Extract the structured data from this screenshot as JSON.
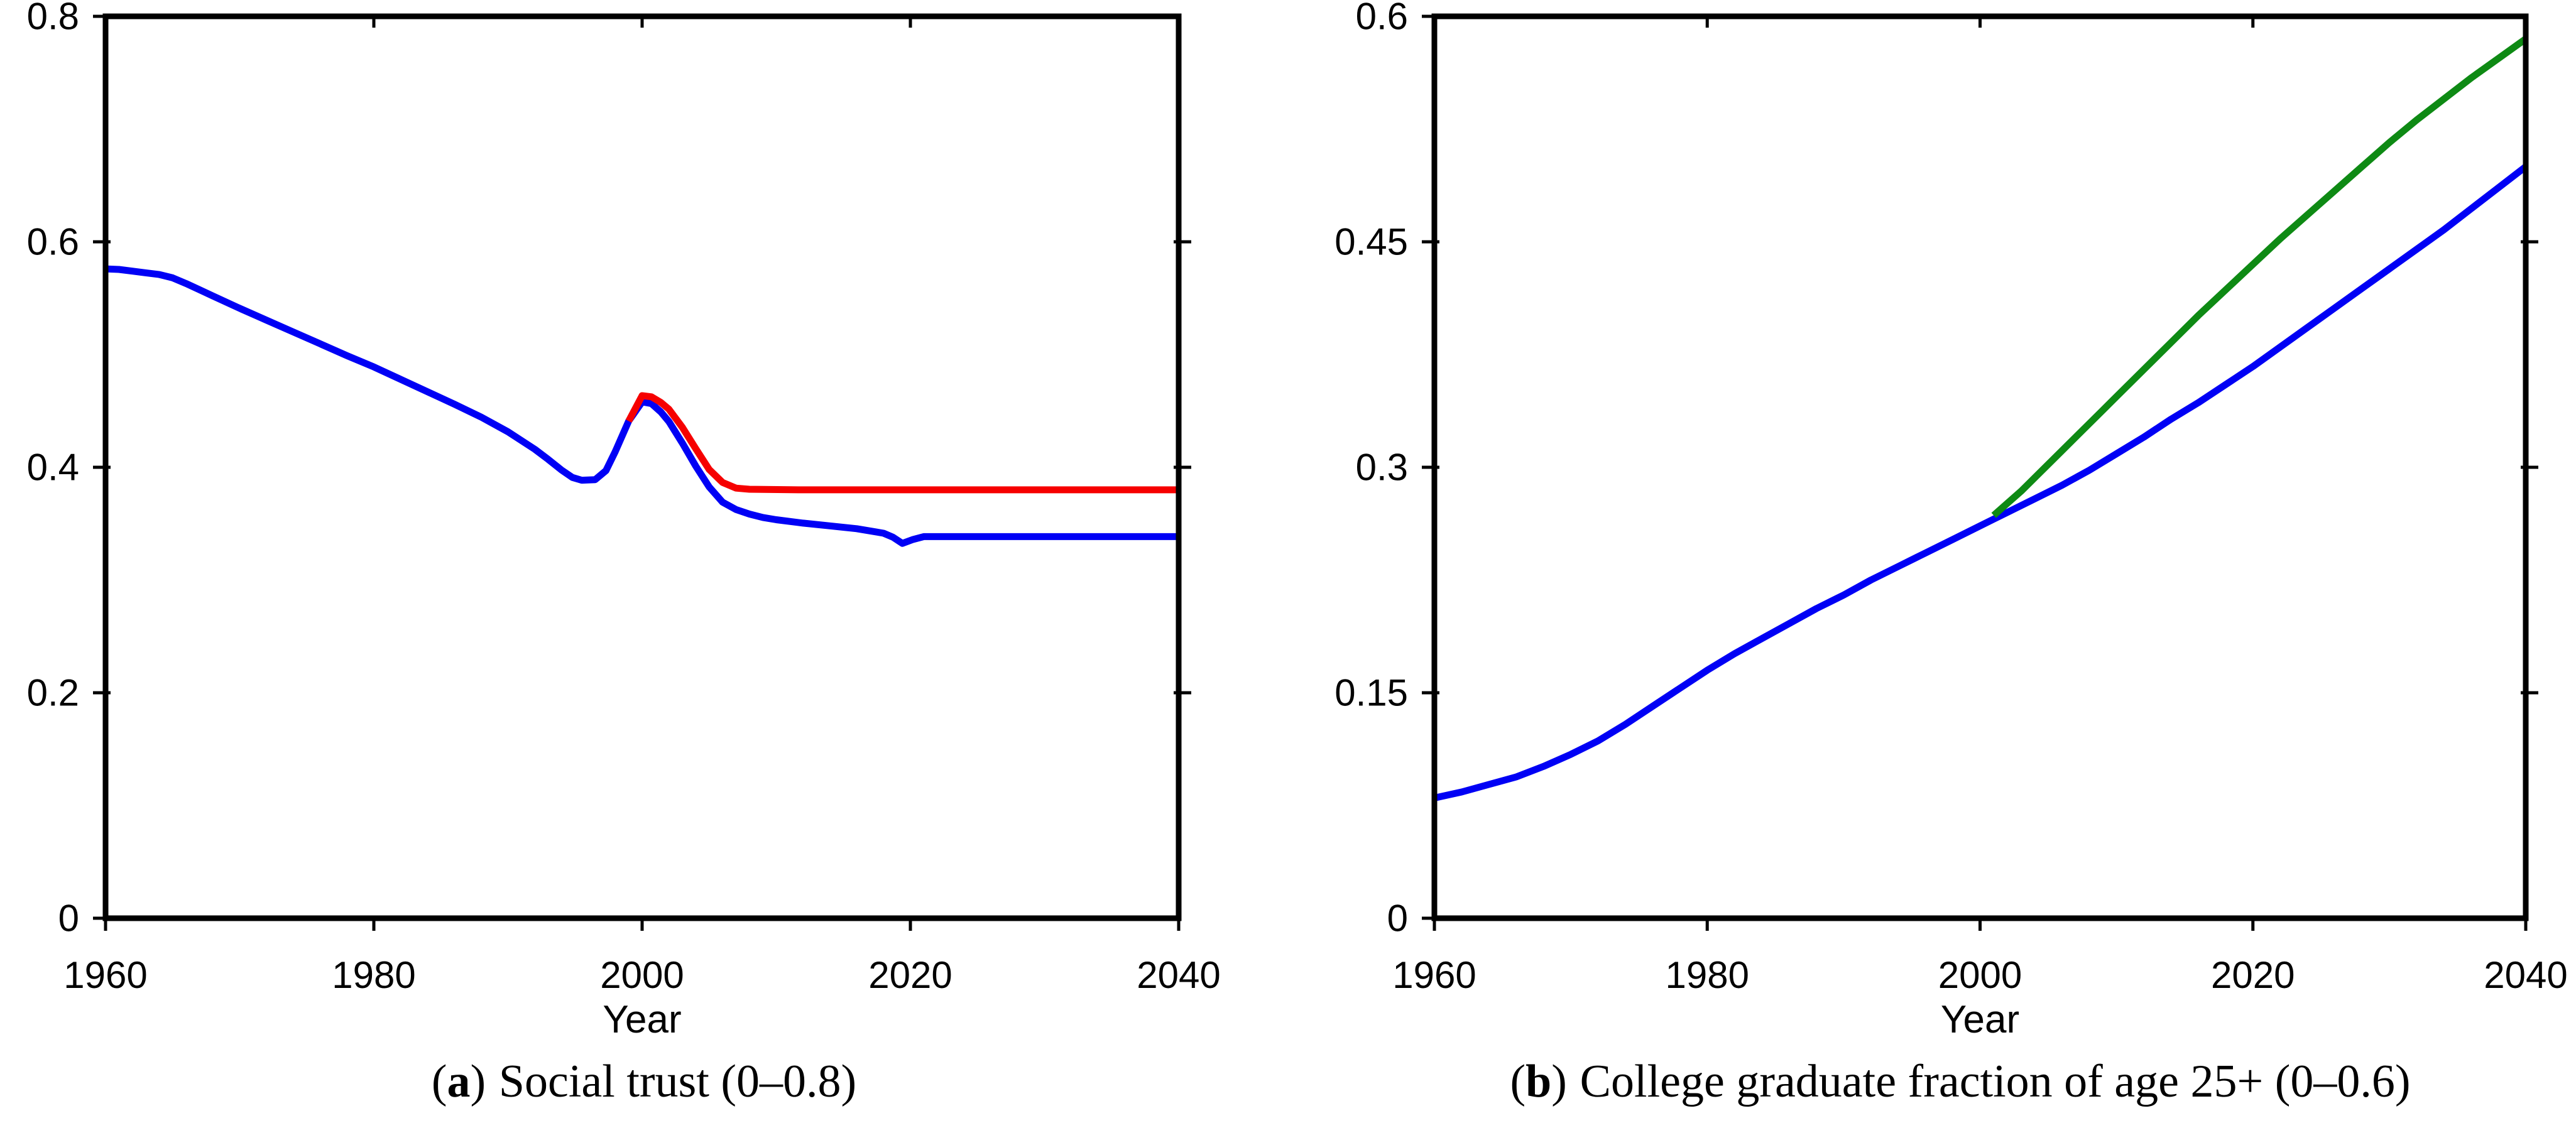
{
  "figure": {
    "captions": [
      {
        "open": "(",
        "letter": "a",
        "close": ")",
        "text": "Social trust (0–0.8)"
      },
      {
        "open": "(",
        "letter": "b",
        "close": ")",
        "text": "College graduate fraction of age 25+ (0–0.6)"
      }
    ],
    "axis_color": "#000000",
    "background": "#ffffff"
  },
  "chart_data": [
    {
      "type": "line",
      "title": "",
      "xlabel": "Year",
      "ylabel": "",
      "xlim": [
        1960,
        2040
      ],
      "ylim": [
        0,
        0.8
      ],
      "xticks": [
        1960,
        1980,
        2000,
        2020,
        2040
      ],
      "xtick_labels": [
        "1960",
        "1980",
        "2000",
        "2020",
        "2040"
      ],
      "yticks": [
        0,
        0.2,
        0.4,
        0.6,
        0.8
      ],
      "ytick_labels": [
        "0",
        "0.2",
        "0.4",
        "0.6",
        "0.8"
      ],
      "grid": false,
      "legend": null,
      "series": [
        {
          "name": "social-trust-baseline-blue",
          "color": "#0000F5",
          "points": [
            [
              1960,
              0.576
            ],
            [
              1961,
              0.5755
            ],
            [
              1962,
              0.574
            ],
            [
              1963,
              0.5725
            ],
            [
              1964,
              0.571
            ],
            [
              1965,
              0.568
            ],
            [
              1966,
              0.563
            ],
            [
              1967,
              0.5575
            ],
            [
              1968,
              0.552
            ],
            [
              1970,
              0.541
            ],
            [
              1972,
              0.5305
            ],
            [
              1974,
              0.52
            ],
            [
              1976,
              0.5095
            ],
            [
              1978,
              0.499
            ],
            [
              1980,
              0.489
            ],
            [
              1982,
              0.478
            ],
            [
              1984,
              0.467
            ],
            [
              1986,
              0.456
            ],
            [
              1988,
              0.4445
            ],
            [
              1990,
              0.4315
            ],
            [
              1992,
              0.416
            ],
            [
              1993,
              0.407
            ],
            [
              1994,
              0.3975
            ],
            [
              1994.8,
              0.391
            ],
            [
              1995.5,
              0.3885
            ],
            [
              1996.5,
              0.389
            ],
            [
              1997.3,
              0.397
            ],
            [
              1998,
              0.414
            ],
            [
              1999,
              0.441
            ],
            [
              2000,
              0.458
            ],
            [
              2000.7,
              0.4565
            ],
            [
              2001.4,
              0.449
            ],
            [
              2002,
              0.4405
            ],
            [
              2003,
              0.4215
            ],
            [
              2004,
              0.401
            ],
            [
              2005,
              0.3825
            ],
            [
              2006,
              0.369
            ],
            [
              2007,
              0.3625
            ],
            [
              2008,
              0.3585
            ],
            [
              2009,
              0.3555
            ],
            [
              2010,
              0.3535
            ],
            [
              2012,
              0.3505
            ],
            [
              2014,
              0.348
            ],
            [
              2016,
              0.3455
            ],
            [
              2018,
              0.3415
            ],
            [
              2018.7,
              0.338
            ],
            [
              2019.4,
              0.3325
            ],
            [
              2020.2,
              0.336
            ],
            [
              2021,
              0.3385
            ],
            [
              2024,
              0.3385
            ],
            [
              2028,
              0.3385
            ],
            [
              2032,
              0.3385
            ],
            [
              2036,
              0.3385
            ],
            [
              2040,
              0.3385
            ]
          ]
        },
        {
          "name": "social-trust-scenario-red",
          "color": "#F60000",
          "points": [
            [
              1999,
              0.441
            ],
            [
              2000,
              0.4635
            ],
            [
              2000.7,
              0.4625
            ],
            [
              2001.4,
              0.4575
            ],
            [
              2002,
              0.4515
            ],
            [
              2003,
              0.4355
            ],
            [
              2004,
              0.4165
            ],
            [
              2005,
              0.398
            ],
            [
              2006,
              0.3865
            ],
            [
              2007,
              0.3815
            ],
            [
              2008,
              0.3805
            ],
            [
              2012,
              0.38
            ],
            [
              2016,
              0.38
            ],
            [
              2020,
              0.38
            ],
            [
              2025,
              0.38
            ],
            [
              2030,
              0.38
            ],
            [
              2035,
              0.38
            ],
            [
              2040,
              0.38
            ]
          ]
        }
      ]
    },
    {
      "type": "line",
      "title": "",
      "xlabel": "Year",
      "ylabel": "",
      "xlim": [
        1960,
        2040
      ],
      "ylim": [
        0,
        0.6
      ],
      "xticks": [
        1960,
        1980,
        2000,
        2020,
        2040
      ],
      "xtick_labels": [
        "1960",
        "1980",
        "2000",
        "2020",
        "2040"
      ],
      "yticks": [
        0,
        0.15,
        0.3,
        0.45,
        0.6
      ],
      "ytick_labels": [
        "0",
        "0.15",
        "0.3",
        "0.45",
        "0.6"
      ],
      "grid": false,
      "legend": null,
      "series": [
        {
          "name": "college-fraction-baseline-blue",
          "color": "#0000F5",
          "points": [
            [
              1960,
              0.08
            ],
            [
              1962,
              0.084
            ],
            [
              1964,
              0.089
            ],
            [
              1966,
              0.094
            ],
            [
              1968,
              0.101
            ],
            [
              1970,
              0.109
            ],
            [
              1972,
              0.118
            ],
            [
              1974,
              0.129
            ],
            [
              1976,
              0.141
            ],
            [
              1978,
              0.153
            ],
            [
              1980,
              0.165
            ],
            [
              1982,
              0.176
            ],
            [
              1984,
              0.186
            ],
            [
              1986,
              0.196
            ],
            [
              1988,
              0.206
            ],
            [
              1990,
              0.215
            ],
            [
              1992,
              0.225
            ],
            [
              1994,
              0.234
            ],
            [
              1996,
              0.243
            ],
            [
              1998,
              0.252
            ],
            [
              2000,
              0.261
            ],
            [
              2002,
              0.27
            ],
            [
              2004,
              0.279
            ],
            [
              2006,
              0.288
            ],
            [
              2008,
              0.298
            ],
            [
              2010,
              0.309
            ],
            [
              2012,
              0.32
            ],
            [
              2014,
              0.332
            ],
            [
              2016,
              0.343
            ],
            [
              2018,
              0.355
            ],
            [
              2020,
              0.367
            ],
            [
              2022,
              0.38
            ],
            [
              2024,
              0.393
            ],
            [
              2026,
              0.406
            ],
            [
              2028,
              0.419
            ],
            [
              2030,
              0.432
            ],
            [
              2032,
              0.445
            ],
            [
              2034,
              0.458
            ],
            [
              2036,
              0.472
            ],
            [
              2038,
              0.486
            ],
            [
              2040,
              0.5
            ]
          ]
        },
        {
          "name": "college-fraction-scenario-green",
          "color": "#0E8A14",
          "points": [
            [
              2001,
              0.268
            ],
            [
              2002,
              0.276
            ],
            [
              2003,
              0.284
            ],
            [
              2004,
              0.293
            ],
            [
              2005,
              0.302
            ],
            [
              2006,
              0.311
            ],
            [
              2007,
              0.32
            ],
            [
              2008,
              0.329
            ],
            [
              2009,
              0.338
            ],
            [
              2010,
              0.347
            ],
            [
              2012,
              0.365
            ],
            [
              2014,
              0.383
            ],
            [
              2016,
              0.401
            ],
            [
              2018,
              0.418
            ],
            [
              2020,
              0.435
            ],
            [
              2022,
              0.452
            ],
            [
              2024,
              0.468
            ],
            [
              2026,
              0.484
            ],
            [
              2028,
              0.5
            ],
            [
              2030,
              0.516
            ],
            [
              2032,
              0.531
            ],
            [
              2034,
              0.545
            ],
            [
              2036,
              0.559
            ],
            [
              2038,
              0.572
            ],
            [
              2040,
              0.585
            ]
          ]
        }
      ]
    }
  ]
}
